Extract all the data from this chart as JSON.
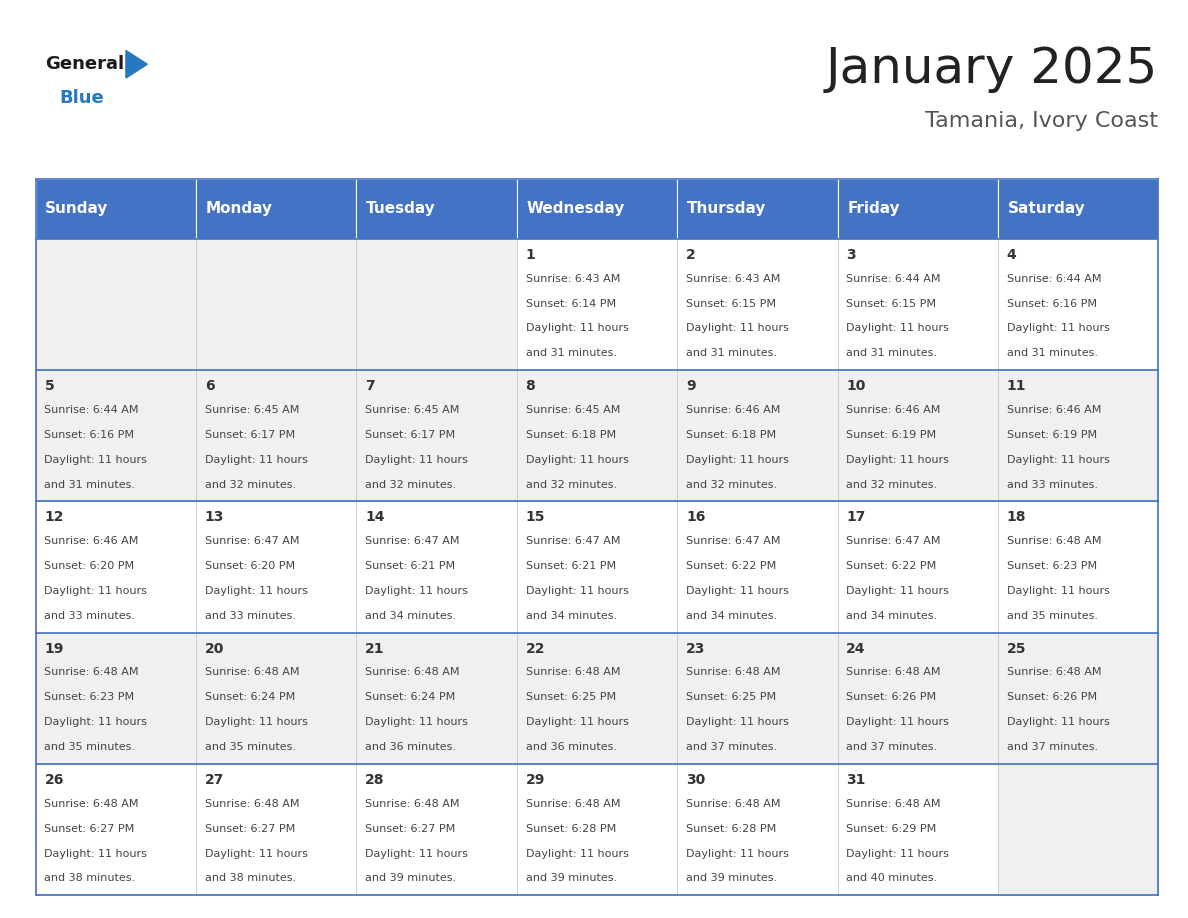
{
  "title": "January 2025",
  "subtitle": "Tamania, Ivory Coast",
  "days_of_week": [
    "Sunday",
    "Monday",
    "Tuesday",
    "Wednesday",
    "Thursday",
    "Friday",
    "Saturday"
  ],
  "header_bg": "#4472C4",
  "header_text": "#FFFFFF",
  "row_bg_light": "#FFFFFF",
  "row_bg_dark": "#F0F0F0",
  "cell_border_color": "#4472C4",
  "cell_grid_color": "#BBBBBB",
  "day_num_color": "#333333",
  "text_color": "#444444",
  "title_color": "#222222",
  "subtitle_color": "#555555",
  "calendar_data": [
    [
      {
        "day": null,
        "sunrise": null,
        "sunset": null,
        "daylight_hours": null,
        "daylight_minutes": null
      },
      {
        "day": null,
        "sunrise": null,
        "sunset": null,
        "daylight_hours": null,
        "daylight_minutes": null
      },
      {
        "day": null,
        "sunrise": null,
        "sunset": null,
        "daylight_hours": null,
        "daylight_minutes": null
      },
      {
        "day": 1,
        "sunrise": "6:43 AM",
        "sunset": "6:14 PM",
        "daylight_hours": 11,
        "daylight_minutes": 31
      },
      {
        "day": 2,
        "sunrise": "6:43 AM",
        "sunset": "6:15 PM",
        "daylight_hours": 11,
        "daylight_minutes": 31
      },
      {
        "day": 3,
        "sunrise": "6:44 AM",
        "sunset": "6:15 PM",
        "daylight_hours": 11,
        "daylight_minutes": 31
      },
      {
        "day": 4,
        "sunrise": "6:44 AM",
        "sunset": "6:16 PM",
        "daylight_hours": 11,
        "daylight_minutes": 31
      }
    ],
    [
      {
        "day": 5,
        "sunrise": "6:44 AM",
        "sunset": "6:16 PM",
        "daylight_hours": 11,
        "daylight_minutes": 31
      },
      {
        "day": 6,
        "sunrise": "6:45 AM",
        "sunset": "6:17 PM",
        "daylight_hours": 11,
        "daylight_minutes": 32
      },
      {
        "day": 7,
        "sunrise": "6:45 AM",
        "sunset": "6:17 PM",
        "daylight_hours": 11,
        "daylight_minutes": 32
      },
      {
        "day": 8,
        "sunrise": "6:45 AM",
        "sunset": "6:18 PM",
        "daylight_hours": 11,
        "daylight_minutes": 32
      },
      {
        "day": 9,
        "sunrise": "6:46 AM",
        "sunset": "6:18 PM",
        "daylight_hours": 11,
        "daylight_minutes": 32
      },
      {
        "day": 10,
        "sunrise": "6:46 AM",
        "sunset": "6:19 PM",
        "daylight_hours": 11,
        "daylight_minutes": 32
      },
      {
        "day": 11,
        "sunrise": "6:46 AM",
        "sunset": "6:19 PM",
        "daylight_hours": 11,
        "daylight_minutes": 33
      }
    ],
    [
      {
        "day": 12,
        "sunrise": "6:46 AM",
        "sunset": "6:20 PM",
        "daylight_hours": 11,
        "daylight_minutes": 33
      },
      {
        "day": 13,
        "sunrise": "6:47 AM",
        "sunset": "6:20 PM",
        "daylight_hours": 11,
        "daylight_minutes": 33
      },
      {
        "day": 14,
        "sunrise": "6:47 AM",
        "sunset": "6:21 PM",
        "daylight_hours": 11,
        "daylight_minutes": 34
      },
      {
        "day": 15,
        "sunrise": "6:47 AM",
        "sunset": "6:21 PM",
        "daylight_hours": 11,
        "daylight_minutes": 34
      },
      {
        "day": 16,
        "sunrise": "6:47 AM",
        "sunset": "6:22 PM",
        "daylight_hours": 11,
        "daylight_minutes": 34
      },
      {
        "day": 17,
        "sunrise": "6:47 AM",
        "sunset": "6:22 PM",
        "daylight_hours": 11,
        "daylight_minutes": 34
      },
      {
        "day": 18,
        "sunrise": "6:48 AM",
        "sunset": "6:23 PM",
        "daylight_hours": 11,
        "daylight_minutes": 35
      }
    ],
    [
      {
        "day": 19,
        "sunrise": "6:48 AM",
        "sunset": "6:23 PM",
        "daylight_hours": 11,
        "daylight_minutes": 35
      },
      {
        "day": 20,
        "sunrise": "6:48 AM",
        "sunset": "6:24 PM",
        "daylight_hours": 11,
        "daylight_minutes": 35
      },
      {
        "day": 21,
        "sunrise": "6:48 AM",
        "sunset": "6:24 PM",
        "daylight_hours": 11,
        "daylight_minutes": 36
      },
      {
        "day": 22,
        "sunrise": "6:48 AM",
        "sunset": "6:25 PM",
        "daylight_hours": 11,
        "daylight_minutes": 36
      },
      {
        "day": 23,
        "sunrise": "6:48 AM",
        "sunset": "6:25 PM",
        "daylight_hours": 11,
        "daylight_minutes": 37
      },
      {
        "day": 24,
        "sunrise": "6:48 AM",
        "sunset": "6:26 PM",
        "daylight_hours": 11,
        "daylight_minutes": 37
      },
      {
        "day": 25,
        "sunrise": "6:48 AM",
        "sunset": "6:26 PM",
        "daylight_hours": 11,
        "daylight_minutes": 37
      }
    ],
    [
      {
        "day": 26,
        "sunrise": "6:48 AM",
        "sunset": "6:27 PM",
        "daylight_hours": 11,
        "daylight_minutes": 38
      },
      {
        "day": 27,
        "sunrise": "6:48 AM",
        "sunset": "6:27 PM",
        "daylight_hours": 11,
        "daylight_minutes": 38
      },
      {
        "day": 28,
        "sunrise": "6:48 AM",
        "sunset": "6:27 PM",
        "daylight_hours": 11,
        "daylight_minutes": 39
      },
      {
        "day": 29,
        "sunrise": "6:48 AM",
        "sunset": "6:28 PM",
        "daylight_hours": 11,
        "daylight_minutes": 39
      },
      {
        "day": 30,
        "sunrise": "6:48 AM",
        "sunset": "6:28 PM",
        "daylight_hours": 11,
        "daylight_minutes": 39
      },
      {
        "day": 31,
        "sunrise": "6:48 AM",
        "sunset": "6:29 PM",
        "daylight_hours": 11,
        "daylight_minutes": 40
      },
      {
        "day": null,
        "sunrise": null,
        "sunset": null,
        "daylight_hours": null,
        "daylight_minutes": null
      }
    ]
  ],
  "logo_general_color": "#1a1a1a",
  "logo_blue_color": "#2878C0",
  "header_font_size": 11,
  "day_num_font_size": 10,
  "cell_text_font_size": 8.0,
  "title_font_size": 36,
  "subtitle_font_size": 16
}
